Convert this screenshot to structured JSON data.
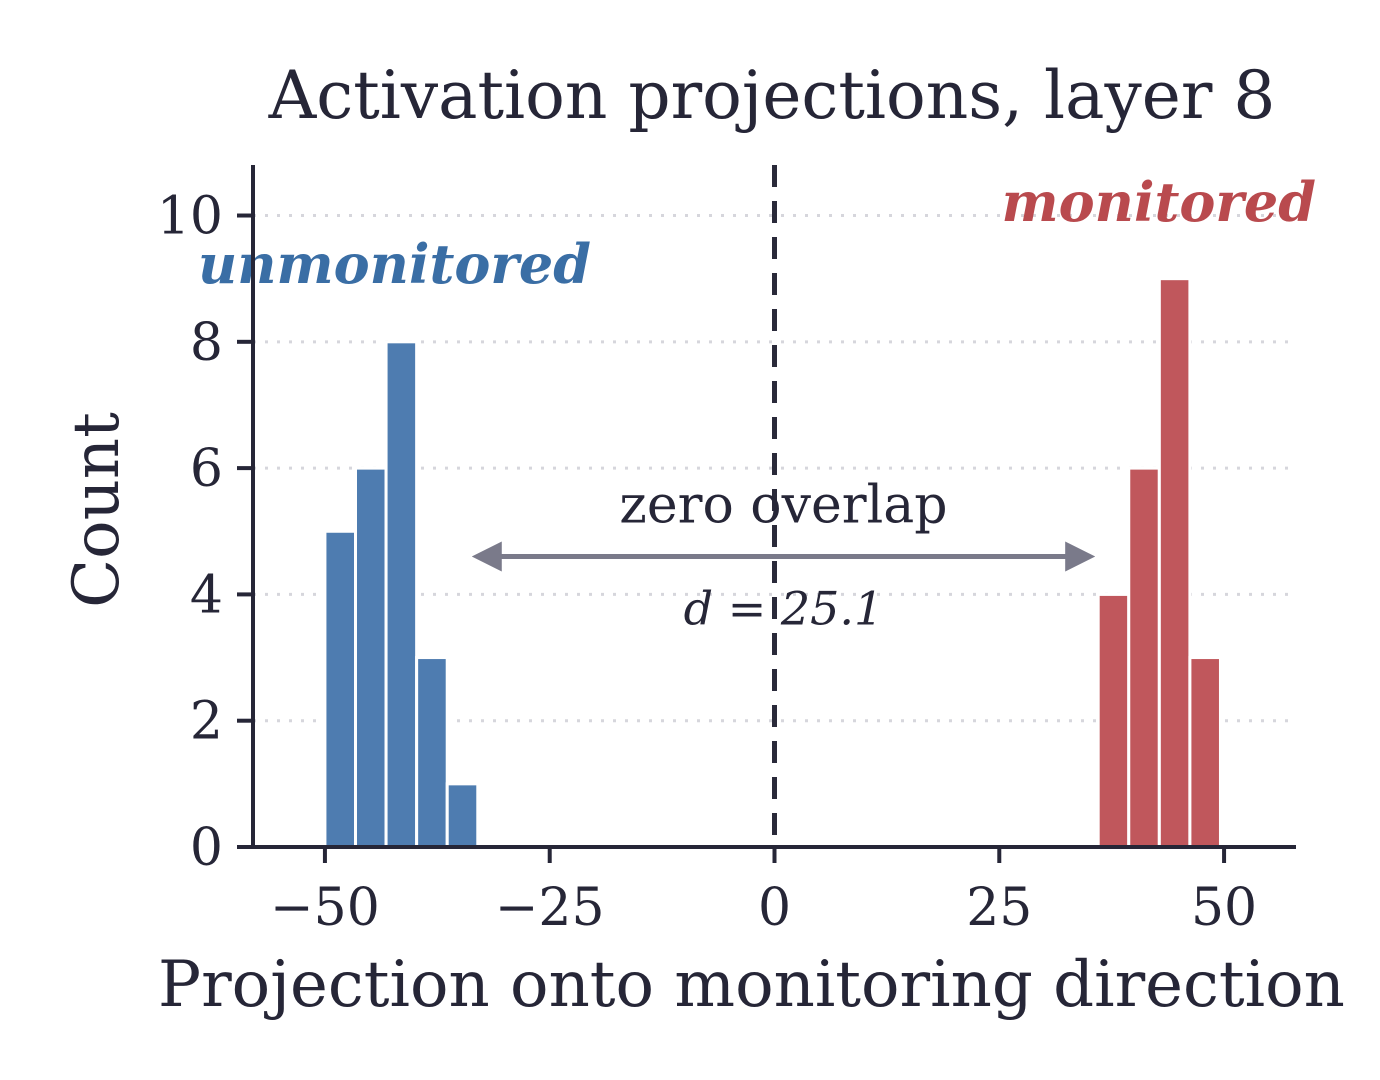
{
  "chart_data": {
    "type": "bar",
    "title": "Activation projections, layer 8",
    "xlabel": "Projection onto monitoring direction",
    "ylabel": "Count",
    "xlim": [
      -58,
      58
    ],
    "ylim": [
      0,
      10.8
    ],
    "x_ticks": [
      -50,
      -25,
      0,
      25,
      50
    ],
    "x_tick_labels": [
      "−50",
      "−25",
      "0",
      "25",
      "50"
    ],
    "y_ticks": [
      0,
      2,
      4,
      6,
      8,
      10
    ],
    "y_tick_labels": [
      "0",
      "2",
      "4",
      "6",
      "8",
      "10"
    ],
    "grid": "horizontal-dotted",
    "bin_width": 3.4,
    "series": [
      {
        "name": "unmonitored",
        "color": "#4e7cb0",
        "bins": [
          {
            "x": -48.3,
            "count": 5
          },
          {
            "x": -44.9,
            "count": 6
          },
          {
            "x": -41.5,
            "count": 8
          },
          {
            "x": -38.1,
            "count": 3
          },
          {
            "x": -34.7,
            "count": 1
          }
        ]
      },
      {
        "name": "monitored",
        "color": "#c0575c",
        "bins": [
          {
            "x": 37.7,
            "count": 4
          },
          {
            "x": 41.1,
            "count": 6
          },
          {
            "x": 44.5,
            "count": 9
          },
          {
            "x": 47.9,
            "count": 3
          }
        ]
      }
    ],
    "threshold_line": {
      "x": 0
    },
    "annotation": {
      "text": "zero overlap",
      "subtext": "d = 25.1",
      "arrow_from": -33,
      "arrow_to": 35,
      "arrow_y": 4.6
    },
    "label_colors": {
      "unmonitored": "#3a6ea5",
      "monitored": "#b94a4e"
    }
  }
}
